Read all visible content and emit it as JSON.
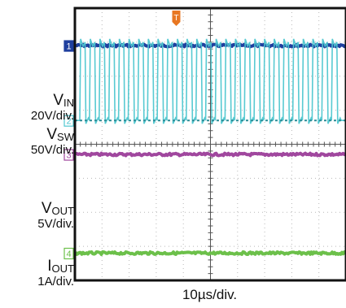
{
  "chart_data": {
    "type": "oscilloscope",
    "grid": true,
    "divisions": {
      "x": 10,
      "y": 8
    },
    "time_scale": "10µs/div.",
    "trigger_marker": "T",
    "channels": [
      {
        "id": "1",
        "name": "V",
        "sub": "IN",
        "scale": "20V/div.",
        "color": "#1f3f9e",
        "trace_level_div": 1.1,
        "waveform": "dc"
      },
      {
        "id": "2",
        "name": "V",
        "sub": "SW",
        "scale": "50V/div.",
        "color": "#4fc7d0",
        "trace_level_div": 3.3,
        "high_level_div": 1.0,
        "waveform": "switching",
        "periods_per_div": 2.8
      },
      {
        "id": "3",
        "name": "V",
        "sub": "OUT",
        "scale": "5V/div.",
        "color": "#a0479e",
        "trace_level_div": 4.3,
        "waveform": "dc"
      },
      {
        "id": "4",
        "name": "I",
        "sub": "OUT",
        "scale": "1A/div.",
        "color": "#6cc04a",
        "trace_level_div": 7.2,
        "waveform": "dc"
      }
    ],
    "colors": {
      "trigger": "#e87722",
      "grid": "#b8b8b8",
      "frame": "#111111"
    }
  }
}
